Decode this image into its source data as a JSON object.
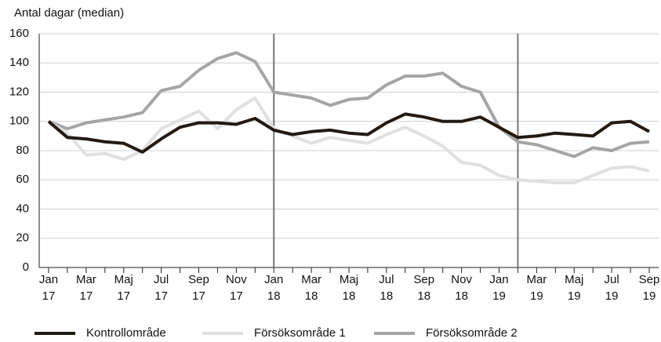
{
  "chart_data": {
    "type": "line",
    "y_axis_label": "Antal dagar (median)",
    "categories": [
      "Jan 17",
      null,
      "Mar 17",
      null,
      "Maj 17",
      null,
      "Jul 17",
      null,
      "Sep 17",
      null,
      "Nov 17",
      null,
      "Jan 18",
      null,
      "Mar 18",
      null,
      "Maj 18",
      null,
      "Jul 18",
      null,
      "Sep 18",
      null,
      "Nov 18",
      null,
      "Jan 19",
      null,
      "Mar 19",
      null,
      "Maj 19",
      null,
      "Jul 19",
      null,
      "Sep 19"
    ],
    "series": [
      {
        "name": "Kontrollområde",
        "color": "#231a12",
        "values": [
          100,
          89,
          88,
          86,
          85,
          79,
          88,
          96,
          99,
          99,
          98,
          102,
          94,
          91,
          93,
          94,
          92,
          91,
          99,
          105,
          103,
          100,
          100,
          103,
          96,
          89,
          90,
          92,
          91,
          90,
          99,
          100,
          93
        ]
      },
      {
        "name": "Försöksområde 1",
        "color": "#e0e0e0",
        "values": [
          100,
          92,
          77,
          78,
          74,
          80,
          95,
          101,
          107,
          95,
          108,
          116,
          95,
          90,
          85,
          89,
          87,
          85,
          91,
          96,
          90,
          83,
          72,
          70,
          63,
          60,
          59,
          58,
          58,
          63,
          68,
          69,
          66
        ]
      },
      {
        "name": "Försöksområde 2",
        "color": "#a5a5a5",
        "values": [
          100,
          95,
          99,
          101,
          103,
          106,
          121,
          124,
          135,
          143,
          147,
          141,
          120,
          118,
          116,
          111,
          115,
          116,
          125,
          131,
          131,
          133,
          124,
          120,
          96,
          86,
          84,
          80,
          76,
          82,
          80,
          85,
          86
        ]
      }
    ],
    "vertical_lines": [
      12,
      25
    ],
    "ylim": [
      0,
      160
    ],
    "yticks": [
      0,
      20,
      40,
      60,
      80,
      100,
      120,
      140,
      160
    ],
    "grid": true
  }
}
